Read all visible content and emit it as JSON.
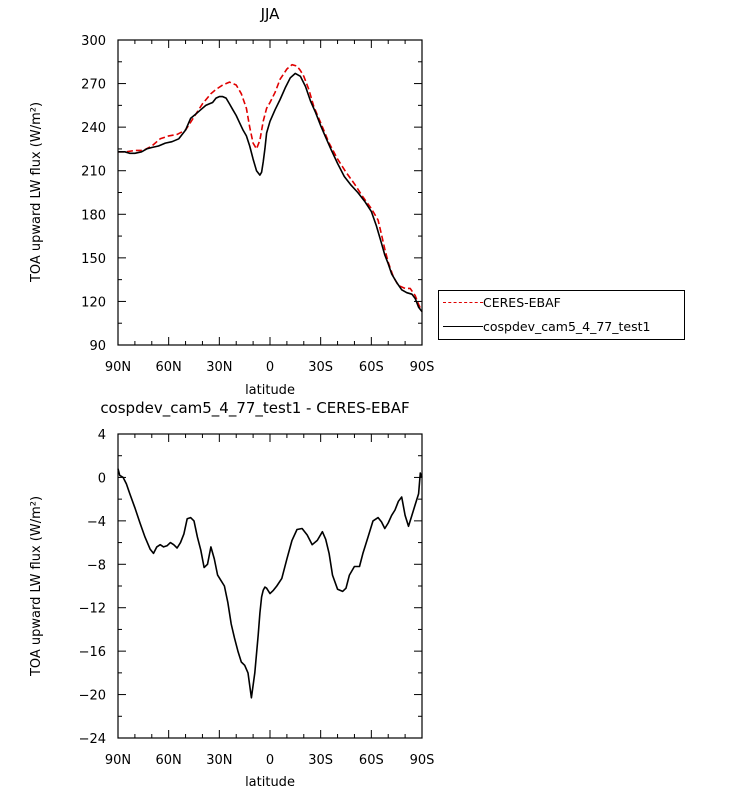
{
  "colors": {
    "ceres": "#e00000",
    "model": "#000000"
  },
  "legend": {
    "ceres_label": "CERES-EBAF",
    "model_label": "cospdev_cam5_4_77_test1"
  },
  "chart_data": [
    {
      "type": "line",
      "title": "JJA",
      "xlabel": "latitude",
      "ylabel": "TOA upward LW flux (W/m²)",
      "xlim": [
        90,
        -90
      ],
      "ylim": [
        90,
        300
      ],
      "x_ticks": [
        90,
        60,
        30,
        0,
        -30,
        -60,
        -90
      ],
      "x_tick_labels": [
        "90N",
        "60N",
        "30N",
        "0",
        "30S",
        "60S",
        "90S"
      ],
      "y_ticks": [
        90,
        120,
        150,
        180,
        210,
        240,
        270,
        300
      ],
      "y_tick_labels": [
        "90",
        "120",
        "150",
        "180",
        "210",
        "240",
        "270",
        "300"
      ],
      "legend_position": "right",
      "series": [
        {
          "name": "CERES-EBAF",
          "style": "dashed",
          "x": [
            90,
            85,
            80,
            75,
            70,
            65,
            60,
            55,
            50,
            45,
            40,
            35,
            32,
            28,
            24,
            20,
            17,
            14,
            12,
            10,
            8,
            6,
            4,
            2,
            0,
            -3,
            -6,
            -10,
            -13,
            -16,
            -18,
            -20,
            -23,
            -26,
            -30,
            -35,
            -40,
            -45,
            -50,
            -55,
            -60,
            -64,
            -66,
            -68,
            -70,
            -73,
            -76,
            -80,
            -83,
            -86,
            -88,
            -90
          ],
          "y": [
            223,
            223,
            224,
            224,
            227,
            232,
            234,
            235,
            238,
            247,
            256,
            263,
            266,
            269,
            271,
            269,
            263,
            253,
            240,
            229,
            225,
            231,
            244,
            253,
            257,
            264,
            273,
            280,
            283,
            282,
            279,
            275,
            266,
            254,
            243,
            229,
            218,
            209,
            201,
            192,
            184,
            176,
            166,
            156,
            147,
            137,
            131,
            129,
            129,
            124,
            118,
            113
          ]
        },
        {
          "name": "cospdev_cam5_4_77_test1",
          "style": "solid",
          "x": [
            90,
            86,
            83,
            80,
            76,
            73,
            70,
            66,
            62,
            58,
            54,
            50,
            47,
            44,
            42,
            40,
            38,
            36,
            34,
            32,
            30,
            28,
            26,
            24,
            22,
            20,
            18,
            16,
            14,
            12,
            10,
            8,
            6,
            5,
            4,
            3,
            2,
            0,
            -3,
            -6,
            -9,
            -12,
            -15,
            -18,
            -21,
            -24,
            -27,
            -30,
            -33,
            -36,
            -40,
            -44,
            -48,
            -52,
            -56,
            -60,
            -63,
            -66,
            -68,
            -70,
            -72,
            -75,
            -78,
            -81,
            -84,
            -86,
            -88,
            -90
          ],
          "y": [
            223,
            223,
            222,
            222,
            223,
            225,
            226,
            227,
            229,
            230,
            232,
            238,
            246,
            249,
            251,
            253,
            255,
            256,
            257,
            260,
            261,
            261,
            260,
            256,
            252,
            248,
            243,
            238,
            234,
            227,
            218,
            210,
            207,
            209,
            216,
            225,
            236,
            244,
            252,
            259,
            267,
            274,
            277,
            275,
            268,
            258,
            250,
            241,
            233,
            225,
            215,
            206,
            200,
            195,
            189,
            182,
            172,
            160,
            152,
            146,
            139,
            133,
            128,
            126,
            125,
            122,
            116,
            113
          ]
        }
      ]
    },
    {
      "type": "line",
      "title": "cospdev_cam5_4_77_test1 - CERES-EBAF",
      "xlabel": "latitude",
      "ylabel": "TOA upward LW flux (W/m²)",
      "xlim": [
        90,
        -90
      ],
      "ylim": [
        -24,
        4
      ],
      "x_ticks": [
        90,
        60,
        30,
        0,
        -30,
        -60,
        -90
      ],
      "x_tick_labels": [
        "90N",
        "60N",
        "30N",
        "0",
        "30S",
        "60S",
        "90S"
      ],
      "y_ticks": [
        -24,
        -20,
        -16,
        -12,
        -8,
        -4,
        0,
        4
      ],
      "y_tick_labels": [
        "−24",
        "−20",
        "−16",
        "−12",
        "−8",
        "−4",
        "0",
        "4"
      ],
      "series": [
        {
          "name": "",
          "style": "solid",
          "x": [
            90,
            89,
            87,
            85,
            83,
            80,
            77,
            74,
            71,
            69,
            67,
            65,
            63,
            61,
            59,
            57,
            55,
            53,
            51,
            49,
            47,
            45,
            43,
            41,
            39,
            37,
            35,
            33,
            31,
            29,
            27,
            25,
            23,
            21,
            19,
            17,
            15,
            13,
            11,
            9,
            7,
            6,
            5,
            4,
            3,
            2,
            0,
            -2,
            -4,
            -7,
            -10,
            -13,
            -16,
            -19,
            -22,
            -25,
            -28,
            -31,
            -33,
            -35,
            -37,
            -40,
            -43,
            -45,
            -47,
            -50,
            -53,
            -55,
            -58,
            -61,
            -64,
            -66,
            -68,
            -70,
            -72,
            -74,
            -76,
            -78,
            -80,
            -82,
            -84,
            -86,
            -88,
            -89,
            -90
          ],
          "y": [
            0.8,
            0.2,
            0.0,
            -0.6,
            -1.5,
            -2.8,
            -4.2,
            -5.5,
            -6.6,
            -7.0,
            -6.4,
            -6.2,
            -6.4,
            -6.3,
            -6.0,
            -6.2,
            -6.5,
            -6.0,
            -5.2,
            -3.8,
            -3.7,
            -4.0,
            -5.5,
            -6.7,
            -8.3,
            -8.0,
            -6.4,
            -7.5,
            -9.0,
            -9.5,
            -10.0,
            -11.5,
            -13.5,
            -14.8,
            -16.0,
            -17.0,
            -17.3,
            -18.0,
            -20.3,
            -18.0,
            -14.5,
            -12.5,
            -11.0,
            -10.4,
            -10.1,
            -10.2,
            -10.7,
            -10.4,
            -10.0,
            -9.3,
            -7.5,
            -5.8,
            -4.8,
            -4.7,
            -5.3,
            -6.2,
            -5.8,
            -5.0,
            -5.7,
            -7.0,
            -9.0,
            -10.3,
            -10.5,
            -10.2,
            -9.0,
            -8.2,
            -8.2,
            -7.0,
            -5.5,
            -4.0,
            -3.7,
            -4.1,
            -4.7,
            -4.2,
            -3.5,
            -3.0,
            -2.2,
            -1.8,
            -3.5,
            -4.5,
            -3.5,
            -2.5,
            -1.5,
            0.4,
            0.0
          ]
        }
      ]
    }
  ]
}
